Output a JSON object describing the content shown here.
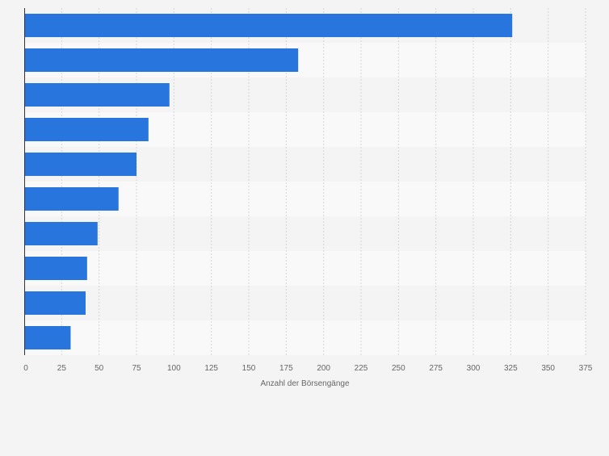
{
  "chart_data": {
    "type": "bar",
    "orientation": "horizontal",
    "title": "",
    "xlabel": "Anzahl der Börsengänge",
    "ylabel": "",
    "categories": [
      "",
      "",
      "",
      "",
      "",
      "",
      "",
      "",
      "",
      ""
    ],
    "values": [
      326,
      183,
      97,
      83,
      75,
      63,
      49,
      42,
      41,
      31
    ],
    "xlim": [
      0,
      375
    ],
    "xticks": [
      0,
      25,
      50,
      75,
      100,
      125,
      150,
      175,
      200,
      225,
      250,
      275,
      300,
      325,
      350,
      375
    ],
    "grid": true,
    "bar_color": "#2876dd",
    "band_colors": [
      "#f4f4f4",
      "#f9f9f9"
    ]
  }
}
